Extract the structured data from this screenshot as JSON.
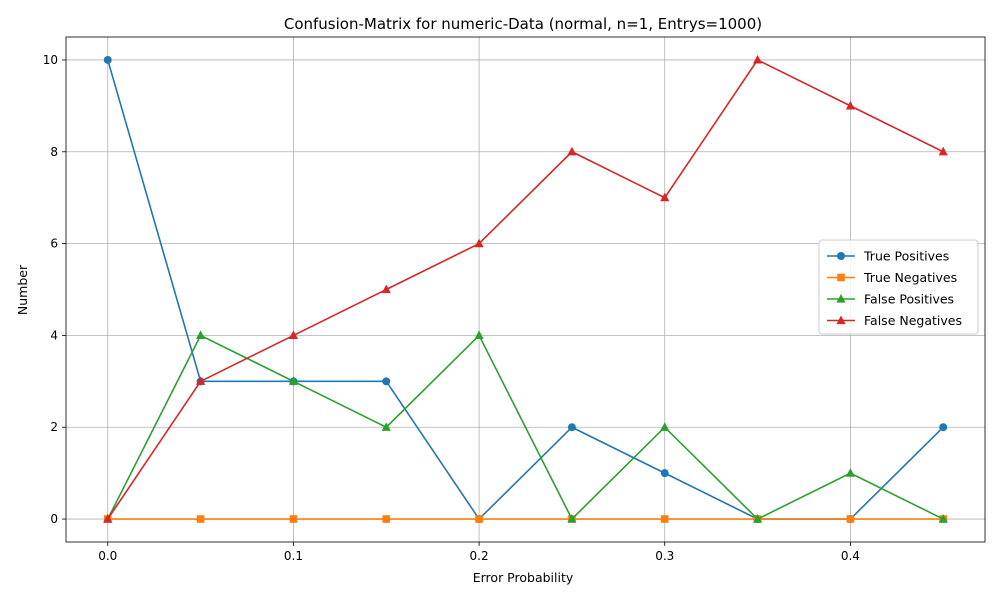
{
  "chart_data": {
    "type": "line",
    "title": "Confusion-Matrix for numeric-Data (normal, n=1, Entrys=1000)",
    "xlabel": "Error Probability",
    "ylabel": "Number",
    "x": [
      0.0,
      0.05,
      0.1,
      0.15,
      0.2,
      0.25,
      0.3,
      0.35,
      0.4,
      0.45
    ],
    "xlim": [
      -0.0225,
      0.4725
    ],
    "ylim": [
      -0.5,
      10.5
    ],
    "xticks": [
      0.0,
      0.1,
      0.2,
      0.3,
      0.4
    ],
    "xtick_labels": [
      "0.0",
      "0.1",
      "0.2",
      "0.3",
      "0.4"
    ],
    "yticks": [
      0,
      2,
      4,
      6,
      8,
      10
    ],
    "ytick_labels": [
      "0",
      "2",
      "4",
      "6",
      "8",
      "10"
    ],
    "grid": true,
    "legend_position": "center-right",
    "series": [
      {
        "name": "True Positives",
        "color": "#1f77b4",
        "marker": "circle",
        "values": [
          10,
          3,
          3,
          3,
          0,
          2,
          1,
          0,
          0,
          2
        ]
      },
      {
        "name": "True Negatives",
        "color": "#ff7f0e",
        "marker": "square",
        "values": [
          0,
          0,
          0,
          0,
          0,
          0,
          0,
          0,
          0,
          0
        ]
      },
      {
        "name": "False Positives",
        "color": "#2ca02c",
        "marker": "triangle",
        "values": [
          0,
          4,
          3,
          2,
          4,
          0,
          2,
          0,
          1,
          0
        ]
      },
      {
        "name": "False Negatives",
        "color": "#d62728",
        "marker": "triangle",
        "values": [
          0,
          3,
          4,
          5,
          6,
          8,
          7,
          10,
          9,
          8
        ]
      }
    ]
  }
}
